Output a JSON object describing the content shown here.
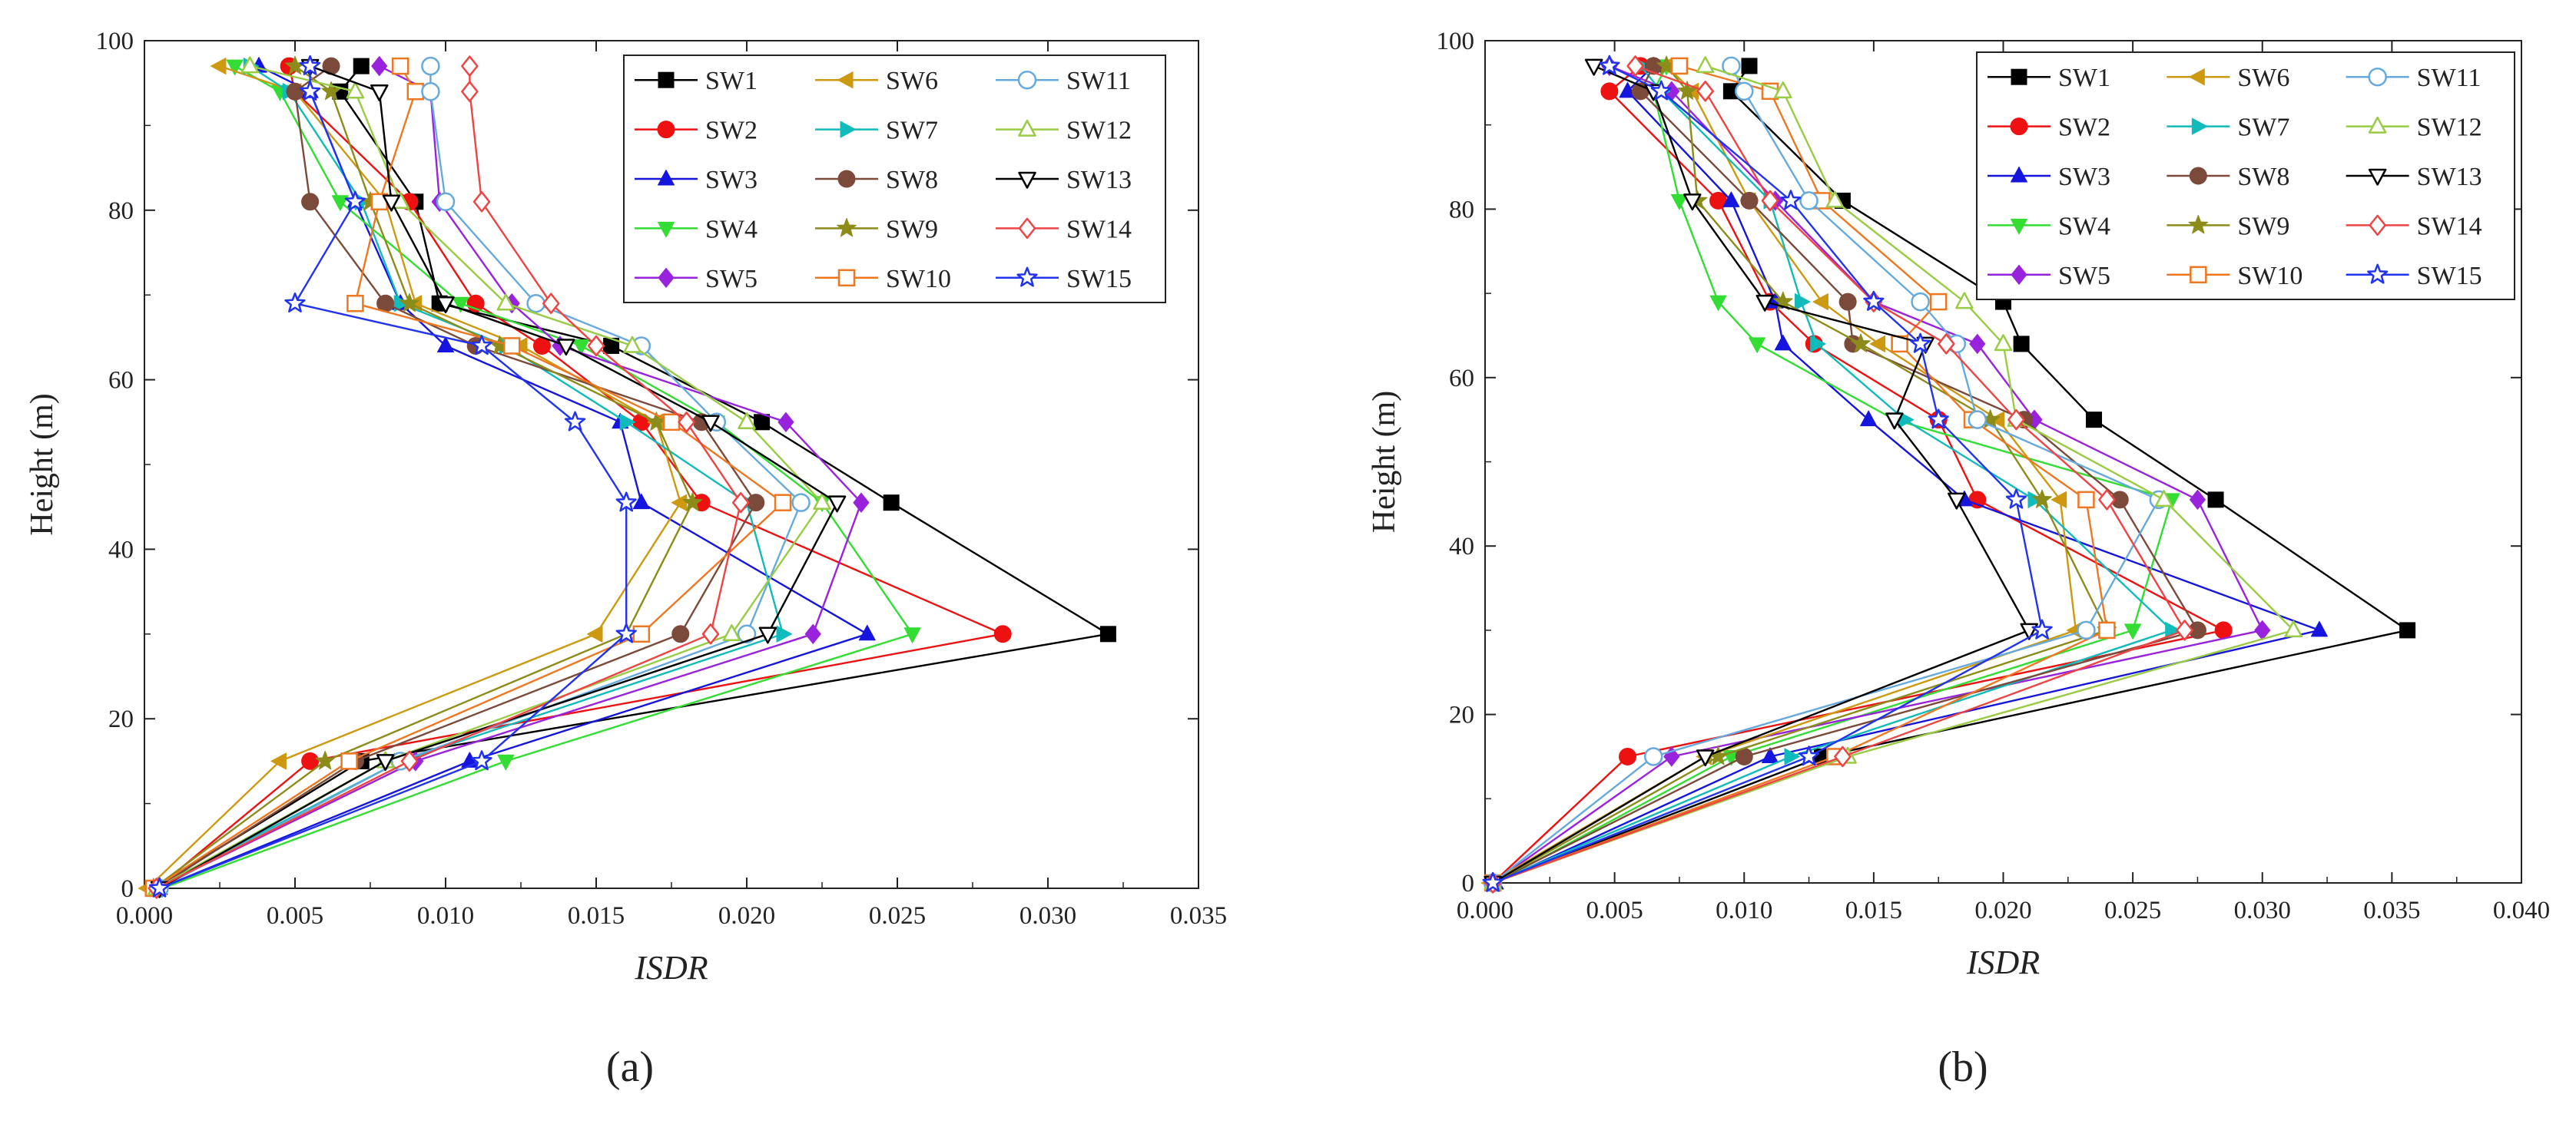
{
  "chart_data": [
    {
      "type": "line",
      "panel_label": "(a)",
      "xlabel": "ISDR",
      "ylabel": "Height (m)",
      "xlim": [
        0,
        0.035
      ],
      "ylim": [
        0,
        100
      ],
      "xticks": [
        "0.000",
        "0.005",
        "0.010",
        "0.015",
        "0.020",
        "0.025",
        "0.030",
        "0.035"
      ],
      "yticks": [
        "0",
        "20",
        "40",
        "60",
        "80",
        "100"
      ],
      "heights": [
        0,
        15,
        30,
        45.5,
        55,
        64,
        69,
        81,
        94,
        97
      ],
      "legend_position": "top-right",
      "series": [
        {
          "name": "SW1",
          "color": "#000000",
          "marker": "square",
          "x": [
            0.0003,
            0.0072,
            0.032,
            0.0248,
            0.0205,
            0.0155,
            0.0098,
            0.009,
            0.0065,
            0.0072
          ]
        },
        {
          "name": "SW2",
          "color": "#ee1111",
          "marker": "circle",
          "x": [
            0.0004,
            0.0055,
            0.0285,
            0.0185,
            0.0165,
            0.0132,
            0.011,
            0.0088,
            0.005,
            0.0048
          ]
        },
        {
          "name": "SW3",
          "color": "#1515dd",
          "marker": "triangle-up",
          "x": [
            0.0005,
            0.0108,
            0.024,
            0.0165,
            0.0158,
            0.01,
            0.0085,
            0.007,
            0.0055,
            0.0038
          ]
        },
        {
          "name": "SW4",
          "color": "#33dd33",
          "marker": "triangle-down",
          "x": [
            0.0006,
            0.012,
            0.0255,
            0.0225,
            0.019,
            0.0145,
            0.0105,
            0.0065,
            0.0045,
            0.003
          ]
        },
        {
          "name": "SW5",
          "color": "#9922dd",
          "marker": "diamond",
          "x": [
            0.0004,
            0.009,
            0.0222,
            0.0238,
            0.0213,
            0.0138,
            0.0122,
            0.0098,
            0.0095,
            0.0078
          ]
        },
        {
          "name": "SW6",
          "color": "#cc9911",
          "marker": "triangle-left",
          "x": [
            0.0001,
            0.0045,
            0.015,
            0.0178,
            0.017,
            0.0125,
            0.009,
            0.008,
            0.005,
            0.0025
          ]
        },
        {
          "name": "SW7",
          "color": "#11bbbb",
          "marker": "triangle-right",
          "x": [
            0.0003,
            0.0085,
            0.0212,
            0.02,
            0.016,
            0.012,
            0.0085,
            0.0072,
            0.0048,
            0.0035
          ]
        },
        {
          "name": "SW8",
          "color": "#7b4a3a",
          "marker": "circle",
          "x": [
            0.0004,
            0.007,
            0.0178,
            0.0203,
            0.0185,
            0.011,
            0.008,
            0.0055,
            0.005,
            0.0062
          ]
        },
        {
          "name": "SW9",
          "color": "#8c8c1a",
          "marker": "star",
          "x": [
            0.0003,
            0.006,
            0.016,
            0.0182,
            0.017,
            0.0118,
            0.0088,
            0.0075,
            0.0062,
            0.005
          ]
        },
        {
          "name": "SW10",
          "color": "#ee7722",
          "marker": "square-open",
          "x": [
            0.0003,
            0.0068,
            0.0165,
            0.0212,
            0.0175,
            0.0122,
            0.007,
            0.0078,
            0.009,
            0.0085
          ]
        },
        {
          "name": "SW11",
          "color": "#66aadd",
          "marker": "circle-open",
          "x": [
            0.0005,
            0.0085,
            0.02,
            0.0218,
            0.019,
            0.0165,
            0.013,
            0.01,
            0.0095,
            0.0095
          ]
        },
        {
          "name": "SW12",
          "color": "#99cc44",
          "marker": "triangle-open",
          "x": [
            0.0004,
            0.008,
            0.0195,
            0.0225,
            0.02,
            0.0162,
            0.012,
            0.0085,
            0.007,
            0.0035
          ]
        },
        {
          "name": "SW13",
          "color": "#000000",
          "marker": "triangle-down-open",
          "x": [
            0.0005,
            0.008,
            0.0207,
            0.023,
            0.0188,
            0.014,
            0.01,
            0.0082,
            0.0078,
            0.0055
          ]
        },
        {
          "name": "SW14",
          "color": "#ee4444",
          "marker": "diamond-open",
          "x": [
            0.0004,
            0.0088,
            0.0188,
            0.0198,
            0.018,
            0.015,
            0.0135,
            0.0112,
            0.0108,
            0.0108
          ]
        },
        {
          "name": "SW15",
          "color": "#2233ee",
          "marker": "star-open",
          "x": [
            0.0005,
            0.0112,
            0.016,
            0.016,
            0.0143,
            0.0112,
            0.005,
            0.007,
            0.0055,
            0.0055
          ]
        }
      ]
    },
    {
      "type": "line",
      "panel_label": "(b)",
      "xlabel": "ISDR",
      "ylabel": "Height (m)",
      "xlim": [
        0,
        0.04
      ],
      "ylim": [
        0,
        100
      ],
      "xticks": [
        "0.000",
        "0.005",
        "0.010",
        "0.015",
        "0.020",
        "0.025",
        "0.030",
        "0.035",
        "0.040"
      ],
      "yticks": [
        "0",
        "20",
        "40",
        "60",
        "80",
        "100"
      ],
      "heights": [
        0,
        15,
        30,
        45.5,
        55,
        64,
        69,
        81,
        94,
        97
      ],
      "legend_position": "top-right",
      "series": [
        {
          "name": "SW1",
          "color": "#000000",
          "marker": "square",
          "x": [
            0.0003,
            0.013,
            0.0356,
            0.0282,
            0.0235,
            0.0207,
            0.02,
            0.0138,
            0.0095,
            0.0102
          ]
        },
        {
          "name": "SW2",
          "color": "#ee1111",
          "marker": "circle",
          "x": [
            0.0003,
            0.0055,
            0.0285,
            0.019,
            0.0175,
            0.0127,
            0.011,
            0.009,
            0.0048,
            0.006
          ]
        },
        {
          "name": "SW3",
          "color": "#1515dd",
          "marker": "triangle-up",
          "x": [
            0.0004,
            0.011,
            0.0322,
            0.0185,
            0.0148,
            0.0115,
            0.0112,
            0.0095,
            0.0055,
            0.0065
          ]
        },
        {
          "name": "SW4",
          "color": "#33dd33",
          "marker": "triangle-down",
          "x": [
            0.0004,
            0.0095,
            0.025,
            0.0265,
            0.0158,
            0.0105,
            0.009,
            0.0075,
            0.0065,
            0.007
          ]
        },
        {
          "name": "SW5",
          "color": "#9922dd",
          "marker": "diamond",
          "x": [
            0.0003,
            0.0072,
            0.03,
            0.0275,
            0.0212,
            0.019,
            0.015,
            0.0112,
            0.0072,
            0.0048
          ]
        },
        {
          "name": "SW6",
          "color": "#cc9911",
          "marker": "triangle-left",
          "x": [
            0.0002,
            0.0085,
            0.0228,
            0.0222,
            0.0198,
            0.0152,
            0.013,
            0.0102,
            0.008,
            0.007
          ]
        },
        {
          "name": "SW7",
          "color": "#11bbbb",
          "marker": "triangle-right",
          "x": [
            0.0003,
            0.0118,
            0.0265,
            0.0212,
            0.0162,
            0.0128,
            0.0122,
            0.011,
            0.0068,
            0.006
          ]
        },
        {
          "name": "SW8",
          "color": "#7b4a3a",
          "marker": "circle",
          "x": [
            0.0003,
            0.01,
            0.0275,
            0.0245,
            0.0208,
            0.0142,
            0.014,
            0.0102,
            0.006,
            0.0065
          ]
        },
        {
          "name": "SW9",
          "color": "#8c8c1a",
          "marker": "star",
          "x": [
            0.0003,
            0.009,
            0.024,
            0.0215,
            0.0195,
            0.0145,
            0.0115,
            0.0082,
            0.0078,
            0.007
          ]
        },
        {
          "name": "SW10",
          "color": "#ee7722",
          "marker": "square-open",
          "x": [
            0.0003,
            0.0135,
            0.024,
            0.0232,
            0.0188,
            0.016,
            0.0175,
            0.013,
            0.011,
            0.0075
          ]
        },
        {
          "name": "SW11",
          "color": "#66aadd",
          "marker": "circle-open",
          "x": [
            0.0003,
            0.0065,
            0.0232,
            0.026,
            0.019,
            0.0182,
            0.0168,
            0.0125,
            0.01,
            0.0095
          ]
        },
        {
          "name": "SW12",
          "color": "#99cc44",
          "marker": "triangle-open",
          "x": [
            0.0003,
            0.014,
            0.0312,
            0.0262,
            0.0205,
            0.02,
            0.0185,
            0.0135,
            0.0115,
            0.0085
          ]
        },
        {
          "name": "SW13",
          "color": "#000000",
          "marker": "triangle-down-open",
          "x": [
            0.0003,
            0.0085,
            0.021,
            0.0182,
            0.0158,
            0.017,
            0.0108,
            0.008,
            0.0065,
            0.0042
          ]
        },
        {
          "name": "SW14",
          "color": "#ee4444",
          "marker": "diamond-open",
          "x": [
            0.0003,
            0.0138,
            0.027,
            0.024,
            0.0205,
            0.0178,
            0.015,
            0.011,
            0.0085,
            0.0058
          ]
        },
        {
          "name": "SW15",
          "color": "#2233ee",
          "marker": "star-open",
          "x": [
            0.0003,
            0.0125,
            0.0215,
            0.0205,
            0.0175,
            0.0168,
            0.015,
            0.0118,
            0.0068,
            0.0048
          ]
        }
      ]
    }
  ]
}
